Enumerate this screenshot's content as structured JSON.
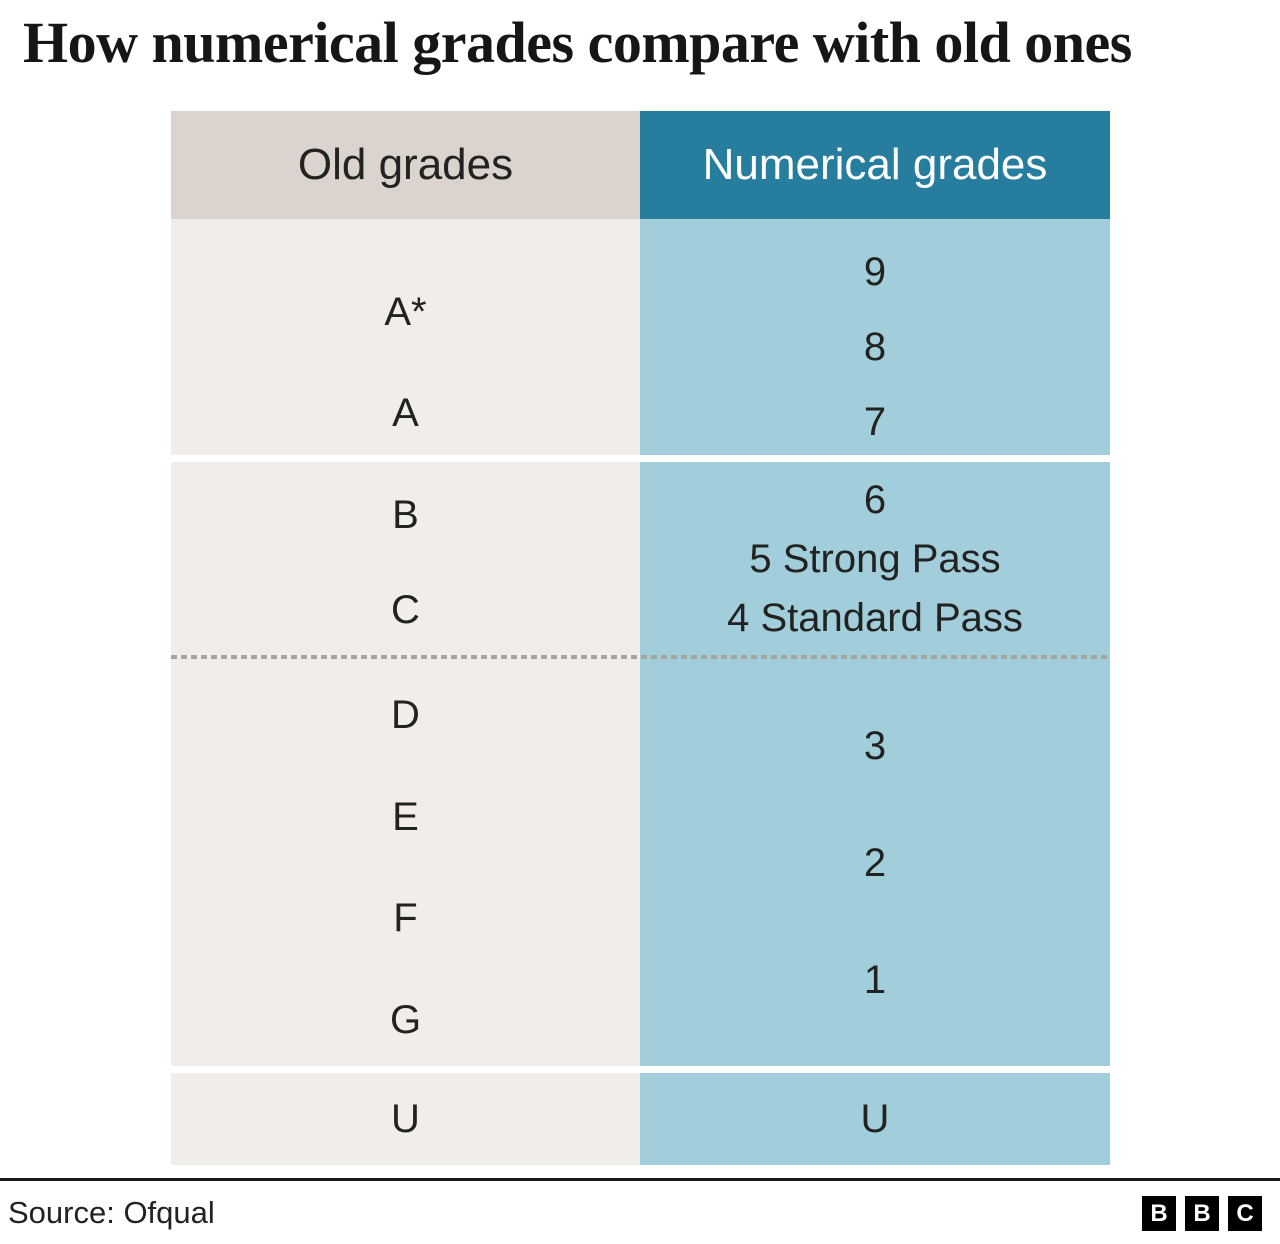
{
  "title": "How numerical grades compare with old ones",
  "header": {
    "old": "Old grades",
    "numerical": "Numerical grades"
  },
  "chart_data": {
    "type": "table",
    "title": "How numerical grades compare with old ones",
    "columns": [
      "Old grades",
      "Numerical grades"
    ],
    "groups": [
      {
        "old": [
          "A*",
          "A"
        ],
        "numerical": [
          "9",
          "8",
          "7"
        ]
      },
      {
        "old": [
          "B",
          "C"
        ],
        "numerical": [
          "6",
          "5 Strong Pass",
          "4 Standard Pass"
        ]
      },
      {
        "old": [
          "D",
          "E",
          "F",
          "G"
        ],
        "numerical": [
          "3",
          "2",
          "1"
        ]
      },
      {
        "old": [
          "U"
        ],
        "numerical": [
          "U"
        ]
      }
    ],
    "layout_hints": {
      "dashed_separator": "between group of grades B/C (6-4) and D-G (3-1)",
      "white_gaps": "between group 1 and 2, and between group 3 and U row"
    }
  },
  "footer": {
    "source": "Source: Ofqual",
    "logo_letters": {
      "b1": "B",
      "b2": "B",
      "c": "C"
    }
  },
  "colors": {
    "header_old_bg": "#dbd4ce",
    "header_numerical_bg": "#267d9e",
    "body_old_bg": "#f1eeea",
    "body_numerical_bg": "#a2cedb",
    "header_numerical_text": "#ffffff",
    "text": "#222221",
    "dashed_line": "#a7a49f",
    "footer_rule": "#1a1a1a",
    "logo_bg": "#000000"
  }
}
